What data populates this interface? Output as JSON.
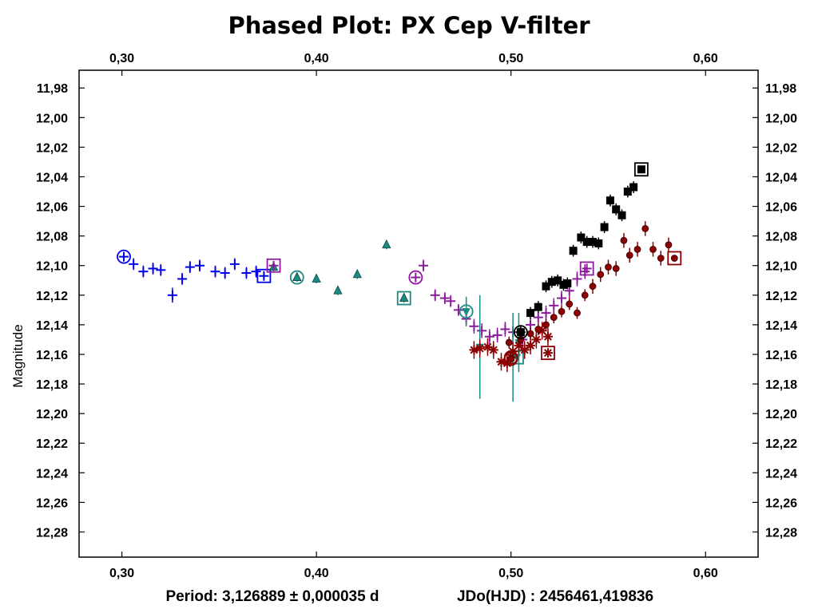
{
  "chart_data": {
    "type": "scatter",
    "title": "Phased Plot: PX Cep V-filter",
    "xlabel": "",
    "ylabel": "Magnitude",
    "xlim": [
      0.278,
      0.627
    ],
    "ylim": [
      12.297,
      11.968
    ],
    "y_inverted": true,
    "x_ticks": [
      0.3,
      0.4,
      0.5,
      0.6
    ],
    "x_tick_labels": [
      "0,30",
      "0,40",
      "0,50",
      "0,60"
    ],
    "y_ticks": [
      11.98,
      12.0,
      12.02,
      12.04,
      12.06,
      12.08,
      12.1,
      12.12,
      12.14,
      12.16,
      12.18,
      12.2,
      12.22,
      12.24,
      12.26,
      12.28
    ],
    "y_tick_labels": [
      "11,98",
      "12,00",
      "12,02",
      "12,04",
      "12,06",
      "12,08",
      "12,10",
      "12,12",
      "12,14",
      "12,16",
      "12,18",
      "12,20",
      "12,22",
      "12,24",
      "12,26",
      "12,28"
    ],
    "footer_period": "Period: 3,126889 ± 0,000035 d",
    "footer_epoch": "JDo(HJD) : 2456461,419836",
    "series": [
      {
        "marker": "plus",
        "color": "#0000ee",
        "x": [
          0.306,
          0.311,
          0.316,
          0.32,
          0.326,
          0.331,
          0.335,
          0.34,
          0.348,
          0.353,
          0.358,
          0.364,
          0.369
        ],
        "y": [
          12.099,
          12.104,
          12.102,
          12.103,
          12.12,
          12.109,
          12.101,
          12.1,
          12.104,
          12.105,
          12.099,
          12.105,
          12.104
        ],
        "err": [
          0.004,
          0.004,
          0.004,
          0.004,
          0.005,
          0.004,
          0.004,
          0.004,
          0.004,
          0.004,
          0.004,
          0.004,
          0.004
        ],
        "circled": [
          0.301,
          12.094
        ],
        "boxed": [
          0.373,
          12.107
        ]
      },
      {
        "marker": "triangle",
        "color": "#1a8a82",
        "x": [
          0.378,
          0.39,
          0.4,
          0.411,
          0.421,
          0.436,
          0.445
        ],
        "y": [
          12.101,
          12.108,
          12.109,
          12.117,
          12.106,
          12.086,
          12.122
        ],
        "err": [
          0.003,
          0.003,
          0.003,
          0.003,
          0.003,
          0.003,
          0.003
        ],
        "circled": [
          0.39,
          12.108
        ],
        "boxed": [
          0.445,
          12.122
        ]
      },
      {
        "marker": "plus",
        "color": "#8b1a9b",
        "x": [
          0.455,
          0.461,
          0.466,
          0.469,
          0.473,
          0.477,
          0.481,
          0.485,
          0.489,
          0.493,
          0.497,
          0.501,
          0.506,
          0.51,
          0.514,
          0.518,
          0.522,
          0.526,
          0.53,
          0.534,
          0.538
        ],
        "y": [
          12.1,
          12.12,
          12.122,
          12.124,
          12.13,
          12.136,
          12.141,
          12.144,
          12.148,
          12.147,
          12.143,
          12.145,
          12.15,
          12.14,
          12.135,
          12.132,
          12.127,
          12.122,
          12.117,
          12.109,
          12.104
        ],
        "err": [
          0.004,
          0.004,
          0.004,
          0.004,
          0.004,
          0.005,
          0.005,
          0.005,
          0.005,
          0.005,
          0.005,
          0.005,
          0.005,
          0.005,
          0.005,
          0.005,
          0.005,
          0.005,
          0.005,
          0.005,
          0.005
        ],
        "circled": [
          0.451,
          12.108
        ],
        "boxed": [
          0.539,
          12.102
        ],
        "boxed2": [
          0.378,
          12.1
        ]
      },
      {
        "marker": "tri_down",
        "color": "#1a8a82",
        "x": [
          0.477,
          0.484,
          0.501,
          0.504
        ],
        "y": [
          12.131,
          12.155,
          12.162,
          12.152
        ],
        "err": [
          0.01,
          0.035,
          0.03,
          0.02
        ],
        "circled": [
          0.477,
          12.131
        ],
        "boxed": [
          0.503,
          12.162
        ]
      },
      {
        "marker": "asterisk",
        "color": "#8b0000",
        "x": [
          0.481,
          0.484,
          0.488,
          0.491,
          0.495,
          0.498,
          0.501,
          0.504,
          0.507,
          0.51,
          0.513,
          0.516,
          0.519
        ],
        "y": [
          12.157,
          12.156,
          12.155,
          12.157,
          12.165,
          12.166,
          12.158,
          12.154,
          12.157,
          12.154,
          12.15,
          12.144,
          12.148
        ],
        "err": [
          0.006,
          0.006,
          0.006,
          0.006,
          0.006,
          0.006,
          0.006,
          0.006,
          0.006,
          0.006,
          0.006,
          0.006,
          0.006
        ],
        "circled": [
          0.5,
          12.162
        ],
        "boxed": [
          0.519,
          12.159
        ]
      },
      {
        "marker": "dot",
        "color": "#8b0000",
        "x": [
          0.499,
          0.505,
          0.51,
          0.514,
          0.518,
          0.522,
          0.526,
          0.53,
          0.534,
          0.538,
          0.542,
          0.546,
          0.55,
          0.554,
          0.558,
          0.561,
          0.565,
          0.569,
          0.573,
          0.577,
          0.581
        ],
        "y": [
          12.152,
          12.15,
          12.146,
          12.143,
          12.14,
          12.135,
          12.131,
          12.126,
          12.132,
          12.12,
          12.114,
          12.106,
          12.101,
          12.102,
          12.083,
          12.093,
          12.089,
          12.075,
          12.089,
          12.095,
          12.086
        ],
        "err": [
          0.004,
          0.004,
          0.004,
          0.004,
          0.004,
          0.004,
          0.004,
          0.004,
          0.004,
          0.004,
          0.005,
          0.005,
          0.005,
          0.005,
          0.005,
          0.005,
          0.005,
          0.005,
          0.005,
          0.005,
          0.005
        ],
        "circled": [
          0.5,
          12.163
        ],
        "boxed": [
          0.584,
          12.095
        ]
      },
      {
        "marker": "square",
        "color": "#000000",
        "x": [
          0.505,
          0.51,
          0.514,
          0.518,
          0.521,
          0.524,
          0.527,
          0.529,
          0.532,
          0.536,
          0.539,
          0.542,
          0.545,
          0.548,
          0.551,
          0.554,
          0.557,
          0.56,
          0.563
        ],
        "y": [
          12.145,
          12.132,
          12.128,
          12.114,
          12.111,
          12.11,
          12.113,
          12.112,
          12.09,
          12.081,
          12.084,
          12.084,
          12.085,
          12.074,
          12.056,
          12.062,
          12.066,
          12.05,
          12.047
        ],
        "err": [
          0.004,
          0.004,
          0.004,
          0.004,
          0.004,
          0.004,
          0.004,
          0.004,
          0.004,
          0.004,
          0.004,
          0.004,
          0.004,
          0.004,
          0.004,
          0.004,
          0.004,
          0.004,
          0.004
        ],
        "circled": [
          0.505,
          12.145
        ],
        "boxed": [
          0.567,
          12.035
        ]
      }
    ]
  }
}
